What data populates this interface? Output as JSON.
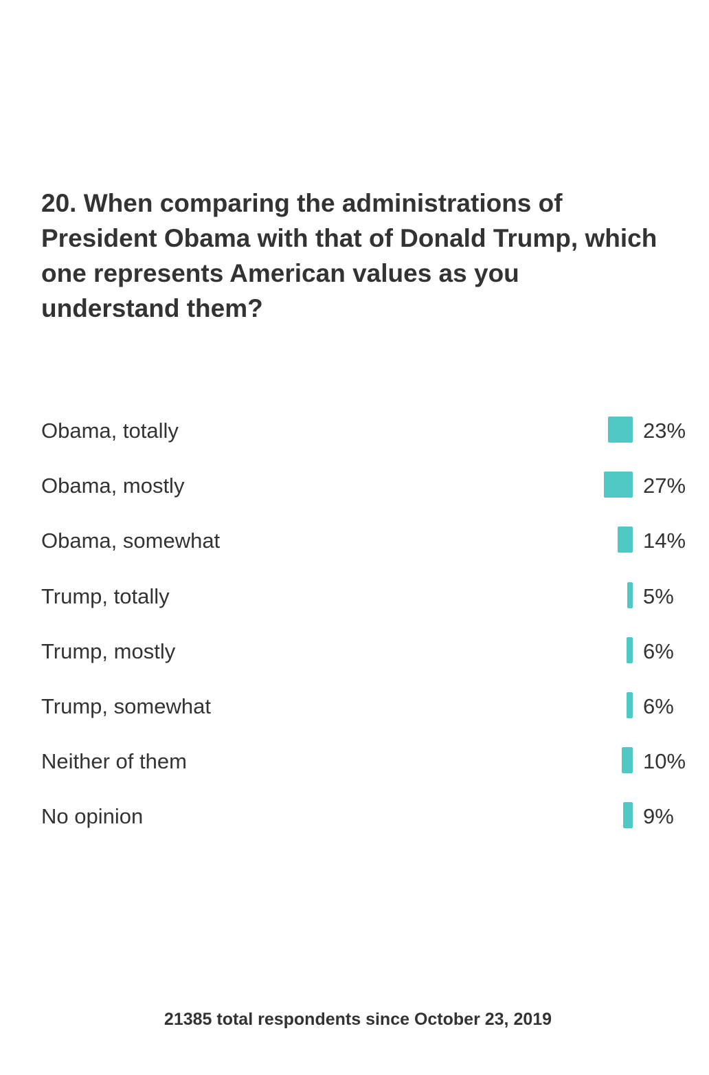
{
  "question": {
    "title": "20. When comparing the administrations of President Obama with that of Donald Trump, which one represents American values as you understand them?"
  },
  "chart_data": {
    "type": "bar",
    "orientation": "horizontal",
    "categories": [
      "Obama, totally",
      "Obama, mostly",
      "Obama, somewhat",
      "Trump, totally",
      "Trump, mostly",
      "Trump, somewhat",
      "Neither of them",
      "No opinion"
    ],
    "values": [
      23,
      27,
      14,
      5,
      6,
      6,
      10,
      9
    ],
    "value_labels": [
      "23%",
      "27%",
      "14%",
      "5%",
      "6%",
      "6%",
      "10%",
      "9%"
    ],
    "unit": "%",
    "bar_color": "#50c8c6"
  },
  "footer": {
    "respondents": "21385 total respondents since October 23, 2019"
  }
}
